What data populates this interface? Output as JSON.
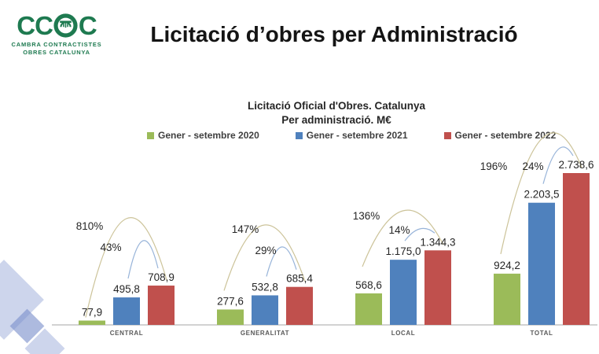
{
  "logo": {
    "acronym_left": "CC",
    "acronym_right": "C",
    "tagline_line1": "CAMBRA CONTRACTISTES",
    "tagline_line2": "OBRES CATALUNYA",
    "brand_color": "#1e7a50"
  },
  "page_title": "Licitació d’obres per Administració",
  "chart_data": {
    "type": "bar",
    "title": "Licitació Oficial d'Obres. Catalunya",
    "subtitle": "Per administració. M€",
    "unit": "M€",
    "categories": [
      "CENTRAL",
      "GENERALITAT",
      "LOCAL",
      "TOTAL"
    ],
    "series": [
      {
        "name": "Gener - setembre 2020",
        "color": "#9bbb59",
        "values": [
          77.9,
          277.6,
          568.6,
          924.2
        ],
        "labels": [
          "77,9",
          "277,6",
          "568,6",
          "924,2"
        ]
      },
      {
        "name": "Gener - setembre 2021",
        "color": "#4f81bd",
        "values": [
          495.8,
          532.8,
          1175.0,
          2203.5
        ],
        "labels": [
          "495,8",
          "532,8",
          "1.175,0",
          "2.203,5"
        ]
      },
      {
        "name": "Gener - setembre 2022",
        "color": "#c0504d",
        "values": [
          708.9,
          685.4,
          1344.3,
          2738.6
        ],
        "labels": [
          "708,9",
          "685,4",
          "1.344,3",
          "2.738,6"
        ]
      }
    ],
    "growth_annotations": [
      {
        "category": "CENTRAL",
        "pct_2020_to_2022": "810%",
        "pct_2021_to_2022": "43%"
      },
      {
        "category": "GENERALITAT",
        "pct_2020_to_2022": "147%",
        "pct_2021_to_2022": "29%"
      },
      {
        "category": "LOCAL",
        "pct_2020_to_2022": "136%",
        "pct_2021_to_2022": "14%"
      },
      {
        "category": "TOTAL",
        "pct_2020_to_2022": "196%",
        "pct_2021_to_2022": "24%"
      }
    ],
    "annotation_arc_colors": {
      "pct_2020_to_2022": "#ccc399",
      "pct_2021_to_2022": "#98b4d9"
    },
    "ylim": [
      0,
      2800
    ],
    "grid": false,
    "legend_position": "top",
    "value_label_color": "#262626",
    "category_label_color": "#595959",
    "axis_line_color": "#c3c3c3"
  }
}
